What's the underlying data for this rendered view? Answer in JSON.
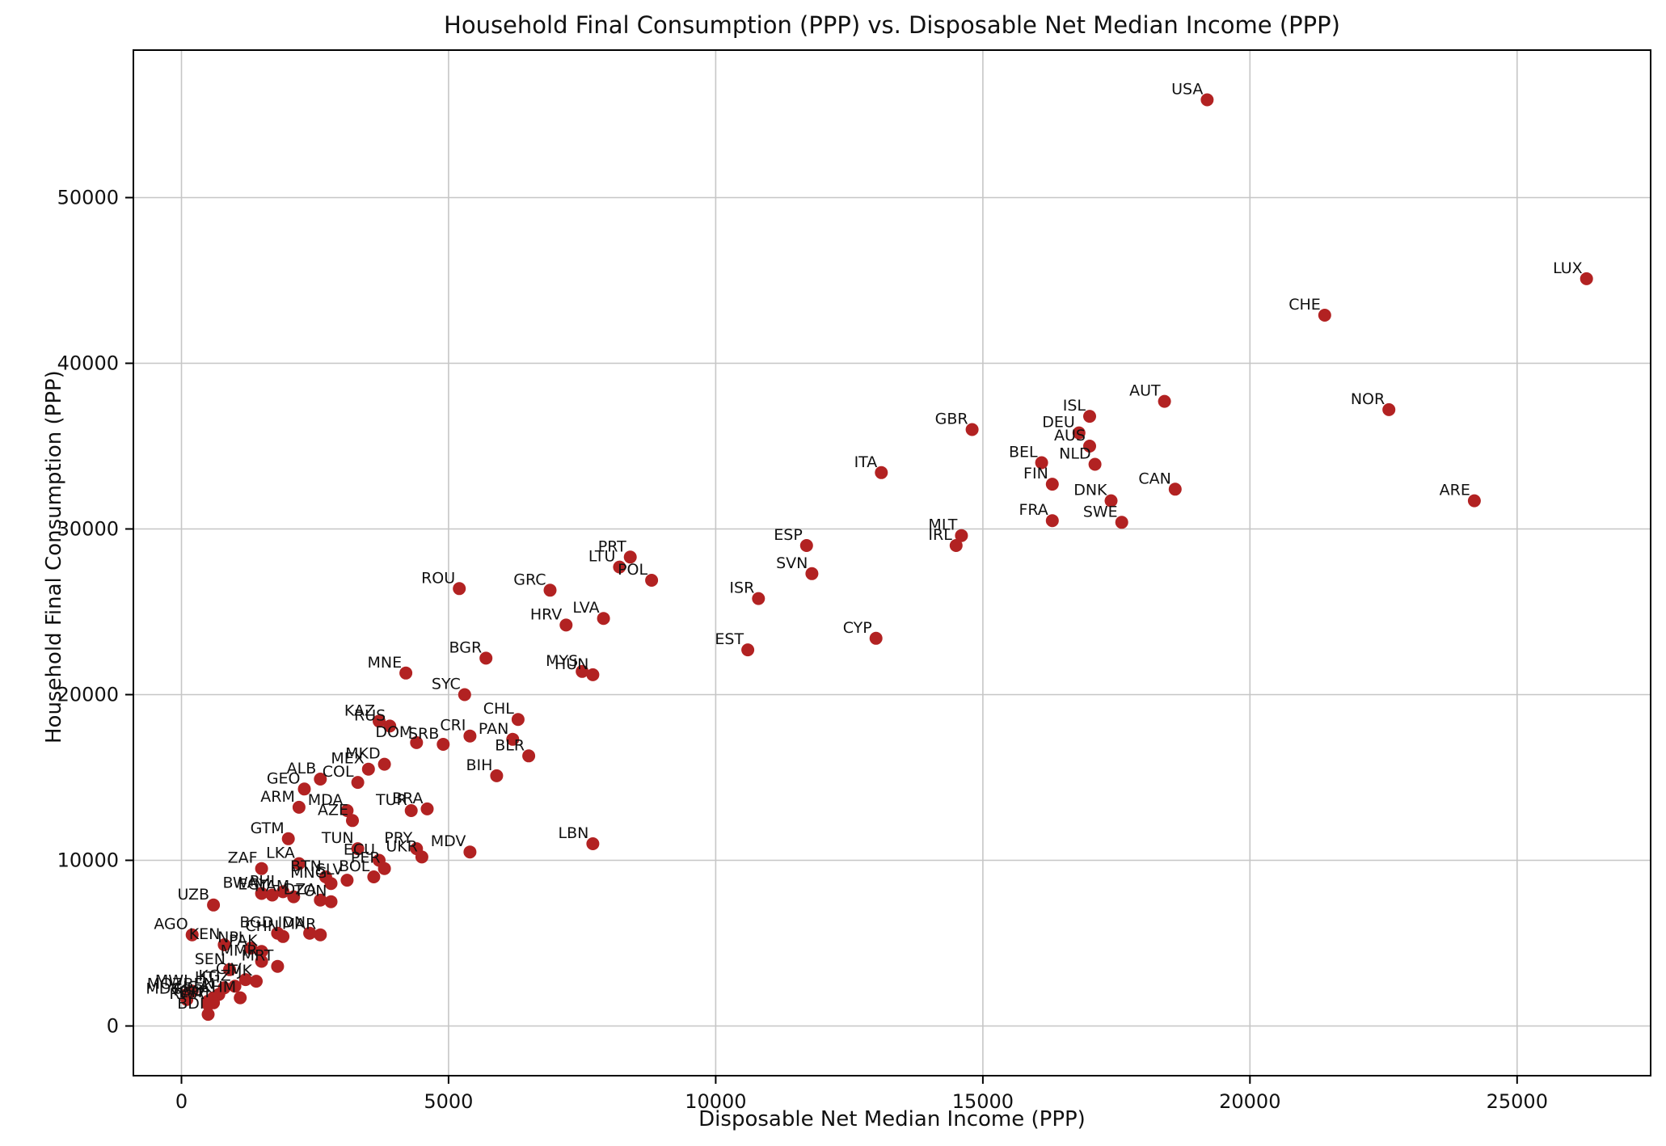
{
  "figure": {
    "background": "#ffffff"
  },
  "chart_data": {
    "type": "scatter",
    "title": "Household Final Consumption (PPP) vs. Disposable Net Median Income (PPP)",
    "xlabel": "Disposable Net Median Income (PPP)",
    "ylabel": "Household Final Consumption (PPP)",
    "xlim": [
      -900,
      27500
    ],
    "ylim": [
      -3000,
      58900
    ],
    "xticks": [
      0,
      5000,
      10000,
      15000,
      20000,
      25000
    ],
    "yticks": [
      0,
      10000,
      20000,
      30000,
      40000,
      50000
    ],
    "grid": true,
    "legend": false,
    "marker_color": "#b22222",
    "grid_color": "#c6c6c6",
    "label_color": "#111111",
    "points": [
      {
        "label": "USA",
        "x": 19200,
        "y": 55900
      },
      {
        "label": "LUX",
        "x": 26300,
        "y": 45100
      },
      {
        "label": "CHE",
        "x": 21400,
        "y": 42900
      },
      {
        "label": "AUT",
        "x": 18400,
        "y": 37700
      },
      {
        "label": "NOR",
        "x": 22600,
        "y": 37200
      },
      {
        "label": "ISL",
        "x": 17000,
        "y": 36800
      },
      {
        "label": "GBR",
        "x": 14800,
        "y": 36000
      },
      {
        "label": "DEU",
        "x": 16800,
        "y": 35800
      },
      {
        "label": "AUS",
        "x": 17000,
        "y": 35000
      },
      {
        "label": "BEL",
        "x": 16100,
        "y": 34000
      },
      {
        "label": "NLD",
        "x": 17100,
        "y": 33900
      },
      {
        "label": "ITA",
        "x": 13100,
        "y": 33400
      },
      {
        "label": "FIN",
        "x": 16300,
        "y": 32700
      },
      {
        "label": "CAN",
        "x": 18600,
        "y": 32400
      },
      {
        "label": "ARE",
        "x": 24200,
        "y": 31700
      },
      {
        "label": "DNK",
        "x": 17400,
        "y": 31700
      },
      {
        "label": "FRA",
        "x": 16300,
        "y": 30500
      },
      {
        "label": "SWE",
        "x": 17600,
        "y": 30400
      },
      {
        "label": "MLT",
        "x": 14600,
        "y": 29600
      },
      {
        "label": "ESP",
        "x": 11700,
        "y": 29000
      },
      {
        "label": "IRL",
        "x": 14500,
        "y": 29000
      },
      {
        "label": "PRT",
        "x": 8400,
        "y": 28300
      },
      {
        "label": "LTU",
        "x": 8200,
        "y": 27700
      },
      {
        "label": "SVN",
        "x": 11800,
        "y": 27300
      },
      {
        "label": "POL",
        "x": 8800,
        "y": 26900
      },
      {
        "label": "ROU",
        "x": 5200,
        "y": 26400
      },
      {
        "label": "GRC",
        "x": 6900,
        "y": 26300
      },
      {
        "label": "ISR",
        "x": 10800,
        "y": 25800
      },
      {
        "label": "LVA",
        "x": 7900,
        "y": 24600
      },
      {
        "label": "HRV",
        "x": 7200,
        "y": 24200
      },
      {
        "label": "CYP",
        "x": 13000,
        "y": 23400
      },
      {
        "label": "EST",
        "x": 10600,
        "y": 22700
      },
      {
        "label": "BGR",
        "x": 5700,
        "y": 22200
      },
      {
        "label": "MYS",
        "x": 7500,
        "y": 21400
      },
      {
        "label": "MNE",
        "x": 4200,
        "y": 21300
      },
      {
        "label": "HUN",
        "x": 7700,
        "y": 21200
      },
      {
        "label": "SYC",
        "x": 5300,
        "y": 20000
      },
      {
        "label": "CHL",
        "x": 6300,
        "y": 18500
      },
      {
        "label": "KAZ",
        "x": 3700,
        "y": 18400
      },
      {
        "label": "RUS",
        "x": 3900,
        "y": 18100
      },
      {
        "label": "CRI",
        "x": 5400,
        "y": 17500
      },
      {
        "label": "PAN",
        "x": 6200,
        "y": 17300
      },
      {
        "label": "DOM",
        "x": 4400,
        "y": 17100
      },
      {
        "label": "SRB",
        "x": 4900,
        "y": 17000
      },
      {
        "label": "BLR",
        "x": 6500,
        "y": 16300
      },
      {
        "label": "MKD",
        "x": 3800,
        "y": 15800
      },
      {
        "label": "MEX",
        "x": 3500,
        "y": 15500
      },
      {
        "label": "BIH",
        "x": 5900,
        "y": 15100
      },
      {
        "label": "ALB",
        "x": 2600,
        "y": 14900
      },
      {
        "label": "COL",
        "x": 3300,
        "y": 14700
      },
      {
        "label": "GEO",
        "x": 2300,
        "y": 14300
      },
      {
        "label": "ARM",
        "x": 2200,
        "y": 13200
      },
      {
        "label": "BRA",
        "x": 4600,
        "y": 13100
      },
      {
        "label": "MDA",
        "x": 3100,
        "y": 13000
      },
      {
        "label": "TUR",
        "x": 4300,
        "y": 13000
      },
      {
        "label": "AZE",
        "x": 3200,
        "y": 12400
      },
      {
        "label": "GTM",
        "x": 2000,
        "y": 11300
      },
      {
        "label": "LBN",
        "x": 7700,
        "y": 11000
      },
      {
        "label": "PRY",
        "x": 4400,
        "y": 10700
      },
      {
        "label": "TUN",
        "x": 3300,
        "y": 10700
      },
      {
        "label": "MDV",
        "x": 5400,
        "y": 10500
      },
      {
        "label": "UKR",
        "x": 4500,
        "y": 10200
      },
      {
        "label": "ECU",
        "x": 3700,
        "y": 10000
      },
      {
        "label": "LKA",
        "x": 2200,
        "y": 9800
      },
      {
        "label": "PER",
        "x": 3800,
        "y": 9500
      },
      {
        "label": "ZAF",
        "x": 1500,
        "y": 9500
      },
      {
        "label": "BOL",
        "x": 3600,
        "y": 9000
      },
      {
        "label": "BTN",
        "x": 2700,
        "y": 9000
      },
      {
        "label": "SLV",
        "x": 3100,
        "y": 8800
      },
      {
        "label": "MNG",
        "x": 2800,
        "y": 8600
      },
      {
        "label": "PHL",
        "x": 1900,
        "y": 8100
      },
      {
        "label": "BWA",
        "x": 1500,
        "y": 8000
      },
      {
        "label": "EGY",
        "x": 1700,
        "y": 7900
      },
      {
        "label": "NAM",
        "x": 2100,
        "y": 7800
      },
      {
        "label": "DZA",
        "x": 2600,
        "y": 7600
      },
      {
        "label": "TON",
        "x": 2800,
        "y": 7500
      },
      {
        "label": "UZB",
        "x": 600,
        "y": 7300
      },
      {
        "label": "BGD",
        "x": 1800,
        "y": 5600
      },
      {
        "label": "IDN",
        "x": 2400,
        "y": 5600
      },
      {
        "label": "MAR",
        "x": 2600,
        "y": 5500
      },
      {
        "label": "AGO",
        "x": 200,
        "y": 5500
      },
      {
        "label": "CHN",
        "x": 1900,
        "y": 5400
      },
      {
        "label": "KEN",
        "x": 800,
        "y": 4900
      },
      {
        "label": "NPL",
        "x": 1300,
        "y": 4700
      },
      {
        "label": "PAK",
        "x": 1500,
        "y": 4500
      },
      {
        "label": "MMR",
        "x": 1500,
        "y": 3900
      },
      {
        "label": "MRT",
        "x": 1800,
        "y": 3600
      },
      {
        "label": "SEN",
        "x": 900,
        "y": 3400
      },
      {
        "label": "CIV",
        "x": 1200,
        "y": 2800
      },
      {
        "label": "TJK",
        "x": 1400,
        "y": 2700
      },
      {
        "label": "KGZ",
        "x": 1000,
        "y": 2400
      },
      {
        "label": "HTI",
        "x": 800,
        "y": 2300
      },
      {
        "label": "MWI",
        "x": 200,
        "y": 2100
      },
      {
        "label": "BEN",
        "x": 700,
        "y": 1900
      },
      {
        "label": "MOZ",
        "x": 100,
        "y": 1900
      },
      {
        "label": "UGA",
        "x": 600,
        "y": 1700
      },
      {
        "label": "KHM",
        "x": 1100,
        "y": 1700
      },
      {
        "label": "MDG",
        "x": 100,
        "y": 1600
      },
      {
        "label": "TGO",
        "x": 500,
        "y": 1500
      },
      {
        "label": "ETH",
        "x": 600,
        "y": 1400
      },
      {
        "label": "RWA",
        "x": 500,
        "y": 1300
      },
      {
        "label": "BDI",
        "x": 500,
        "y": 700
      }
    ]
  }
}
